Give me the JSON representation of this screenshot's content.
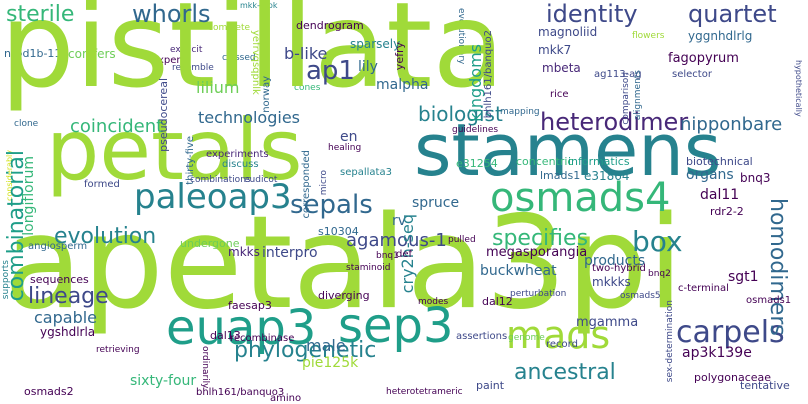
{
  "palette": {
    "lime": "#a0da39",
    "green": "#6ece58",
    "sea": "#35b779",
    "teal": "#1f9e89",
    "blue": "#26828e",
    "slate": "#31688e",
    "indigo": "#3e4989",
    "purple": "#482878",
    "dark": "#440154",
    "yellow": "#d2e21b"
  },
  "words": {
    "pistillata": "pistillata",
    "apetala3pi": "apetala3pi",
    "petals": "petals",
    "stamens": "stamens",
    "euap3": "euap3",
    "sep3": "sep3",
    "paleoap3": "paleoap3",
    "osmads4": "osmads4",
    "mads": "mads",
    "sepals": "sepals",
    "combinatorial": "combinatorial",
    "carpels": "carpels",
    "ap1": "ap1",
    "heterodimer": "heterodimer",
    "identity": "identity",
    "quartet": "quartet",
    "whorls": "whorls",
    "sterile": "sterile",
    "lineage": "lineage",
    "box": "box",
    "evolution": "evolution",
    "phylogenetic": "phylogenetic",
    "ancestral": "ancestral",
    "homodimers": "homodimers",
    "specifies": "specifies",
    "coincident": "coincident",
    "biologist": "biologist",
    "technologies": "technologies",
    "nipponbare": "nipponbare",
    "kingdoms": "kingdoms",
    "b_like": "b-like",
    "lilium": "lilium",
    "malpha": "malpha",
    "lily": "lily",
    "sparsely": "sparsely",
    "mkk7": "mkk7",
    "mbeta": "mbeta",
    "fagopyrum": "fagopyrum",
    "magnoliid": "magnoliid",
    "yggnhdlrlg": "yggnhdlrlg",
    "ap3k139e": "ap3k139e",
    "agamous_1": "agamous-1",
    "cry2h_seq": "cry2h-seq",
    "spruce": "spruce",
    "capable": "capable",
    "sixty_four": "sixty-four",
    "male": "male",
    "pie125k": "pie125k",
    "mgamma": "mgamma",
    "buckwheat": "buckwheat",
    "interpro": "interpro",
    "megasporangia": "megasporangia",
    "products": "products",
    "organs": "organs",
    "biotechnical": "biotechnical",
    "dal11": "dal11",
    "sgt1": "sgt1",
    "tentative": "tentative",
    "polygonaceae": "polygonaceae",
    "paint": "paint",
    "osmads2": "osmads2",
    "ygshdlrla": "ygshdlrla",
    "dal13": "dal13",
    "faesap3": "faesap3",
    "mkks": "mkks",
    "mkkks": "mkkks",
    "two_hybrid": "two-hybrid",
    "rdr2_2": "rdr2-2",
    "e31864": "e31864",
    "lmads1": "lmads1",
    "e31254": "e31254",
    "concentric": "concentric",
    "informatics": "informatics",
    "bnq3": "bnq3",
    "sepallata3": "sepallata3",
    "corresponded": "corresponded",
    "s10304": "s10304",
    "undergone": "undergone",
    "en": "en",
    "rv": "rv",
    "dendrogram": "dendrogram",
    "yefry": "yefry",
    "conifers": "conifers",
    "nrpd1b_11": "nrpd1b-11",
    "expert": "expert",
    "sequences": "sequences",
    "recombinase": "recombinase",
    "record": "record",
    "longiflorum": "longiflorum",
    "angiosperm": "angiosperm",
    "micro": "micro",
    "staminoid": "staminoid",
    "dal12": "dal12",
    "osmads1": "osmads1",
    "osmads5": "osmads5",
    "c_terminal": "c-terminal",
    "bnq2": "bnq2",
    "bhlh161_banquo3": "bhlh161/banquo3",
    "amino": "amino",
    "heterotetrameric": "heterotetrameric",
    "assertions": "assertions",
    "diverging": "diverging",
    "ordinarily": "ordinarily",
    "pseudocereal": "pseudocereal",
    "norway": "norway",
    "perturbation": "perturbation",
    "guidelines": "guidelines",
    "healing": "healing",
    "mapping": "mapping",
    "rice": "rice",
    "selector": "selector",
    "comparison": "comparison",
    "alignments": "alignments",
    "flowers": "flowers",
    "ag113_ag": "ag113-ag",
    "experiments": "experiments",
    "discuss": "discuss",
    "thirty_five": "thirty-five",
    "formed": "formed",
    "combinations": "combinations",
    "eudicot": "eudicot",
    "retrieving": "retrieving",
    "pulled": "pulled",
    "modes": "modes",
    "def": "def",
    "bnq1": "bnq1",
    "clone": "clone",
    "explicit": "explicit",
    "resemble": "resemble",
    "classed": "classed",
    "complete": "complete",
    "cones": "cones",
    "evolutionary": "evolutionary",
    "mkk_mpk": "mkk-mpk",
    "sex_determination": "sex-determination",
    "genome": "genome",
    "supports": "supports",
    "considerably": "considerably",
    "hypothetically": "hypothetically",
    "bhlh161_banquo2": "bhlh161/banquo2",
    "yefrvqsqpnlk": "yefrvqsqpnlk"
  }
}
